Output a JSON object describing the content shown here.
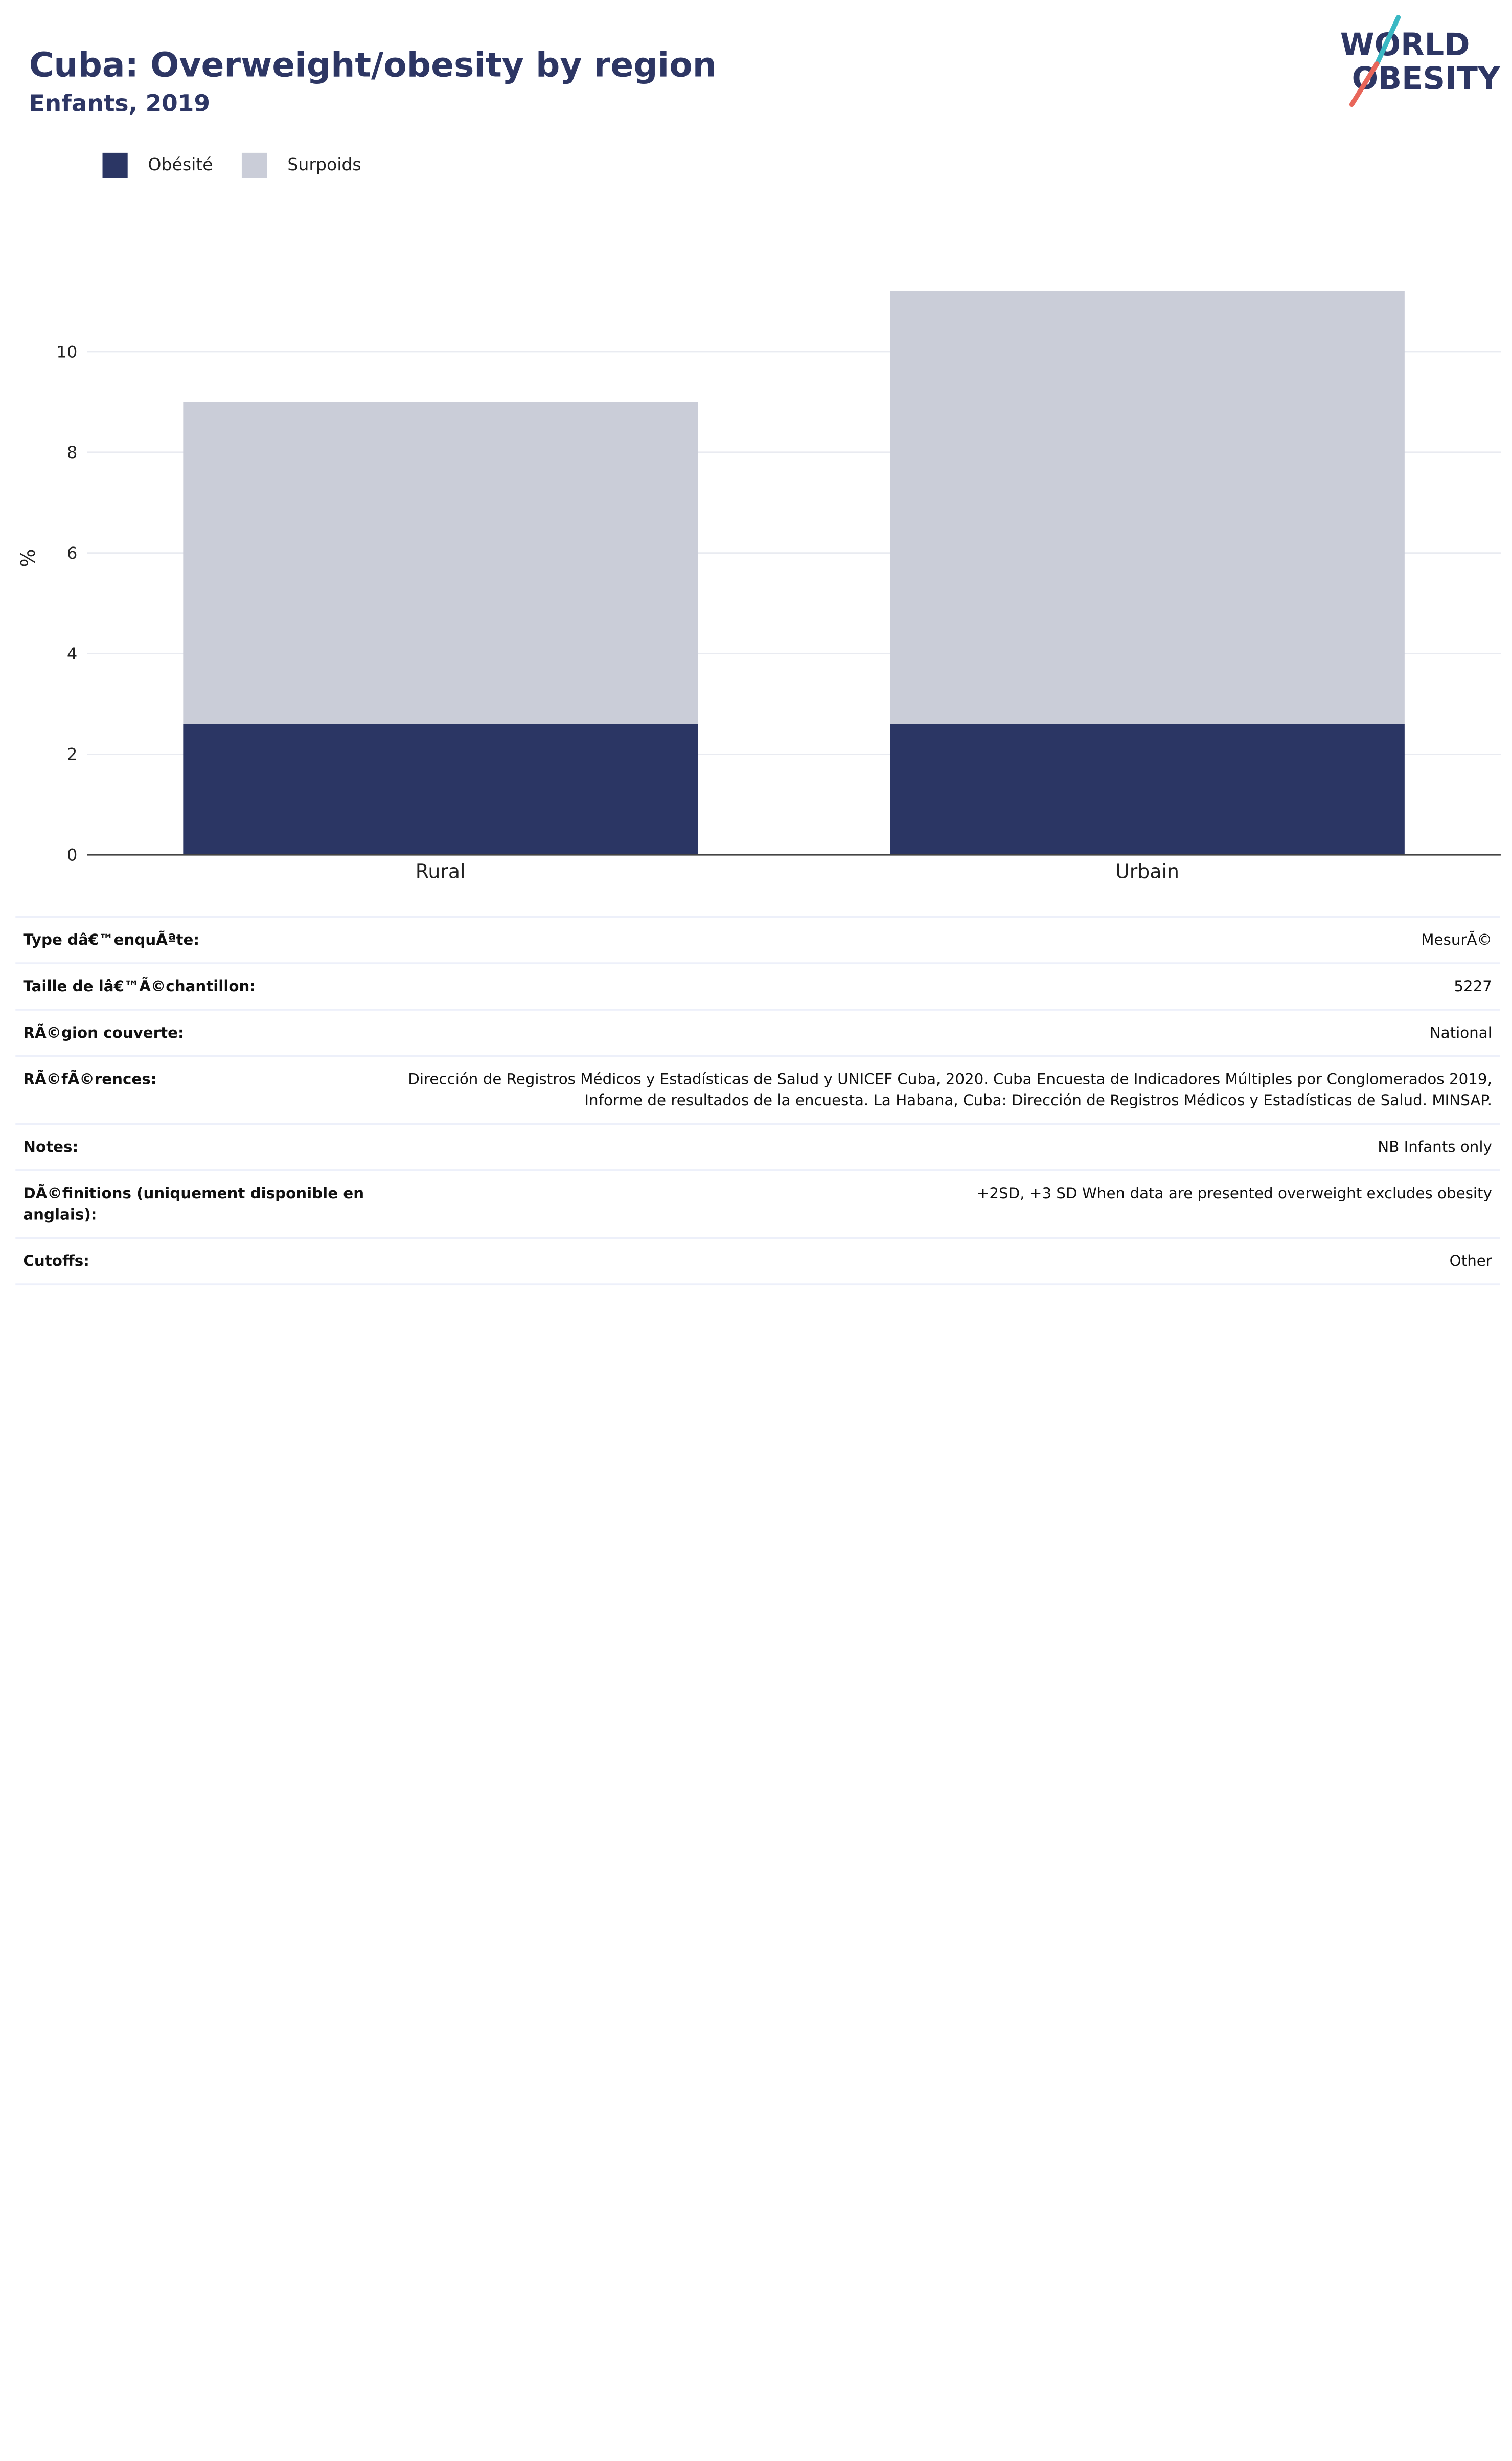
{
  "header": {
    "title": "Cuba: Overweight/obesity by region",
    "subtitle": "Enfants, 2019",
    "logo_line1": "WORLD",
    "logo_line2": "OBESITY"
  },
  "colors": {
    "obesity": "#2b3664",
    "overweight": "#cacdd8",
    "brand_text": "#2d3664",
    "logo_teal": "#3ab8c4",
    "logo_coral": "#e8665a"
  },
  "chart_data": {
    "type": "bar",
    "stacked": true,
    "categories": [
      "Rural",
      "Urbain"
    ],
    "series": [
      {
        "name": "Obésité",
        "values": [
          2.6,
          2.6
        ]
      },
      {
        "name": "Surpoids",
        "values": [
          6.4,
          8.6
        ]
      }
    ],
    "ylabel": "%",
    "xlabel": "",
    "ylim": [
      0,
      11.8
    ],
    "yticks": [
      0,
      2,
      4,
      6,
      8,
      10
    ],
    "grid": true,
    "legend": "top-left"
  },
  "table": {
    "rows": [
      {
        "label": "Type dâ€™enquÃªte:",
        "value": "MesurÃ©"
      },
      {
        "label": "Taille de lâ€™Ã©chantillon:",
        "value": "5227"
      },
      {
        "label": "RÃ©gion couverte:",
        "value": "National"
      },
      {
        "label": "RÃ©fÃ©rences:",
        "value": "Dirección de Registros Médicos y Estadísticas de Salud y UNICEF Cuba, 2020. Cuba Encuesta de Indicadores Múltiples por Conglomerados 2019, Informe de resultados de la encuesta. La Habana, Cuba: Dirección de Registros Médicos y Estadísticas de Salud. MINSAP."
      },
      {
        "label": "Notes:",
        "value": "NB Infants only"
      },
      {
        "label": "DÃ©finitions (uniquement disponible en anglais):",
        "value": "+2SD, +3 SD When data are presented overweight excludes obesity"
      },
      {
        "label": "Cutoffs:",
        "value": "Other"
      }
    ]
  }
}
